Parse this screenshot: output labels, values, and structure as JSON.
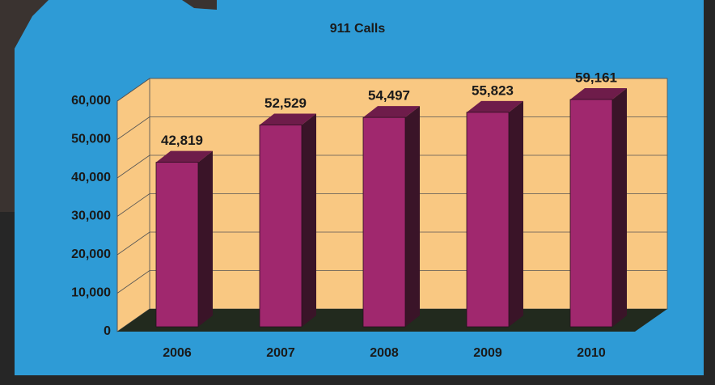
{
  "chart_data": {
    "type": "bar",
    "title": "911 Calls",
    "categories": [
      "2006",
      "2007",
      "2008",
      "2009",
      "2010"
    ],
    "values": [
      42819,
      52529,
      54497,
      55823,
      59161
    ],
    "value_labels": [
      "42,819",
      "52,529",
      "54,497",
      "55,823",
      "59,161"
    ],
    "color": "#a0286e",
    "ylim": [
      0,
      60000
    ],
    "yticks": [
      0,
      {
        "value": 10000,
        "label": "10,000"
      },
      {
        "value": 20000,
        "label": "20,000"
      },
      {
        "value": 30000,
        "label": "30,000"
      },
      {
        "value": 40000,
        "label": "40,000"
      },
      {
        "value": 50000,
        "label": "50,000"
      },
      {
        "value": 60000,
        "label": "60,000"
      }
    ],
    "grid": true
  }
}
